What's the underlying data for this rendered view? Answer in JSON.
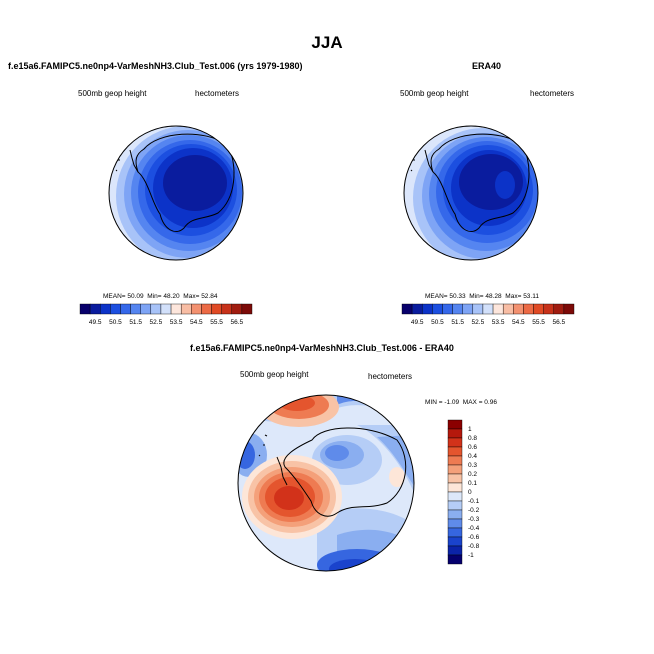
{
  "figure": {
    "season_title": "JJA",
    "colors": {
      "land_outline": "#000000"
    }
  },
  "panels": {
    "model": {
      "title": "f.e15a6.FAMIPC5.ne0np4-VarMeshNH3.Club_Test.006 (yrs 1979-1980)",
      "variable": "500mb geop height",
      "units": "hectometers",
      "stats": {
        "mean_label": "MEAN=",
        "mean": "50.09",
        "min_label": "Min=",
        "min": "48.20",
        "max_label": "Max=",
        "max": "52.84"
      }
    },
    "obs": {
      "title": "ERA40",
      "variable": "500mb geop height",
      "units": "hectometers",
      "stats": {
        "mean_label": "MEAN=",
        "mean": "50.33",
        "min_label": "Min=",
        "min": "48.28",
        "max_label": "Max=",
        "max": "53.11"
      }
    },
    "diff": {
      "title": "f.e15a6.FAMIPC5.ne0np4-VarMeshNH3.Club_Test.006 - ERA40",
      "variable": "500mb geop height",
      "units": "hectometers",
      "stats": {
        "min_label": "MIN =",
        "min": "-1.09",
        "max_label": "MAX =",
        "max": "0.96"
      }
    }
  },
  "colorbar_abs": {
    "labels": [
      "49.5",
      "50.5",
      "51.5",
      "52.5",
      "53.5",
      "54.5",
      "55.5",
      "56.5"
    ],
    "colors": [
      "#08006b",
      "#0a1c9e",
      "#0c33c8",
      "#1c4fe0",
      "#3568ea",
      "#5585f0",
      "#7ea4f5",
      "#a8c3f8",
      "#d2e0fa",
      "#fde6dc",
      "#f8bda4",
      "#f39170",
      "#ec6a45",
      "#e04a25",
      "#c7321a",
      "#a01c10",
      "#7c0a08"
    ]
  },
  "colorbar_diff": {
    "labels": [
      "1",
      "0.8",
      "0.6",
      "0.4",
      "0.3",
      "0.2",
      "0.1",
      "0",
      "-0.1",
      "-0.2",
      "-0.3",
      "-0.4",
      "-0.6",
      "-0.8",
      "-1"
    ],
    "colors": [
      "#8b0000",
      "#b5180c",
      "#d2321a",
      "#e4552e",
      "#ee7b52",
      "#f4a07a",
      "#f8c3a6",
      "#fde6d8",
      "#dde8fa",
      "#b5cdf6",
      "#8aaef0",
      "#5f8bea",
      "#3666e0",
      "#1a43cc",
      "#0b23a8",
      "#05006e"
    ]
  }
}
